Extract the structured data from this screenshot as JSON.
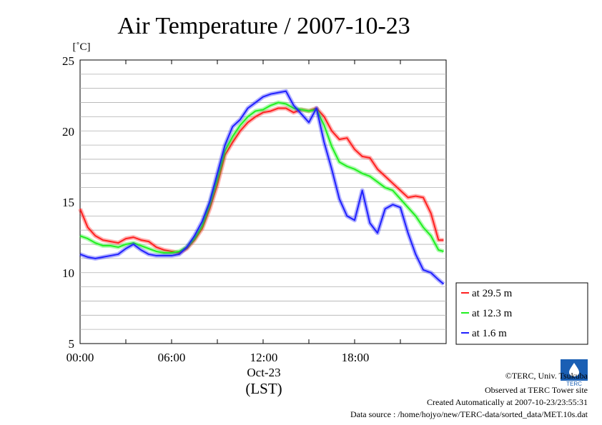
{
  "chart_data": {
    "type": "line",
    "title": "Air Temperature / 2007-10-23",
    "ylabel": "[˚C]",
    "xlabel": "(LST)",
    "x_date_label": "Oct-23",
    "ylim": [
      5,
      25
    ],
    "xlim": [
      "00:00",
      "23:50"
    ],
    "yticks": [
      "5",
      "10",
      "15",
      "20",
      "25"
    ],
    "xticks": [
      "00:00",
      "06:00",
      "12:00",
      "18:00"
    ],
    "grid": "horizontal",
    "legend_position": "right",
    "series": [
      {
        "name": "at 29.5 m",
        "color": "#ff2020",
        "x": [
          "00:00",
          "00:30",
          "01:00",
          "01:30",
          "02:00",
          "02:30",
          "03:00",
          "03:30",
          "04:00",
          "04:30",
          "05:00",
          "05:30",
          "06:00",
          "06:30",
          "07:00",
          "07:30",
          "08:00",
          "08:30",
          "09:00",
          "09:30",
          "10:00",
          "10:30",
          "11:00",
          "11:30",
          "12:00",
          "12:30",
          "13:00",
          "13:30",
          "14:00",
          "14:30",
          "15:00",
          "15:30",
          "16:00",
          "16:30",
          "17:00",
          "17:30",
          "18:00",
          "18:30",
          "19:00",
          "19:30",
          "20:00",
          "20:30",
          "21:00",
          "21:30",
          "22:00",
          "22:30",
          "23:00",
          "23:30",
          "23:50"
        ],
        "values": [
          14.5,
          13.2,
          12.6,
          12.3,
          12.2,
          12.1,
          12.4,
          12.5,
          12.3,
          12.2,
          11.8,
          11.6,
          11.5,
          11.4,
          11.7,
          12.3,
          13.1,
          14.5,
          16.2,
          18.3,
          19.2,
          20.0,
          20.6,
          21.0,
          21.3,
          21.4,
          21.6,
          21.6,
          21.3,
          21.5,
          21.4,
          21.6,
          21.0,
          20.0,
          19.4,
          19.5,
          18.7,
          18.2,
          18.1,
          17.3,
          16.8,
          16.3,
          15.8,
          15.3,
          15.4,
          15.3,
          14.2,
          12.3,
          12.3
        ]
      },
      {
        "name": "at 12.3 m",
        "color": "#20f020",
        "x": [
          "00:00",
          "00:30",
          "01:00",
          "01:30",
          "02:00",
          "02:30",
          "03:00",
          "03:30",
          "04:00",
          "04:30",
          "05:00",
          "05:30",
          "06:00",
          "06:30",
          "07:00",
          "07:30",
          "08:00",
          "08:30",
          "09:00",
          "09:30",
          "10:00",
          "10:30",
          "11:00",
          "11:30",
          "12:00",
          "12:30",
          "13:00",
          "13:30",
          "14:00",
          "14:30",
          "15:00",
          "15:30",
          "16:00",
          "16:30",
          "17:00",
          "17:30",
          "18:00",
          "18:30",
          "19:00",
          "19:30",
          "20:00",
          "20:30",
          "21:00",
          "21:30",
          "22:00",
          "22:30",
          "23:00",
          "23:30",
          "23:50"
        ],
        "values": [
          12.6,
          12.4,
          12.1,
          11.9,
          11.9,
          11.8,
          12.0,
          12.1,
          11.9,
          11.7,
          11.5,
          11.4,
          11.4,
          11.5,
          11.8,
          12.4,
          13.3,
          14.8,
          16.6,
          18.6,
          19.6,
          20.4,
          21.0,
          21.4,
          21.5,
          21.8,
          22.0,
          21.9,
          21.6,
          21.5,
          21.4,
          21.5,
          20.4,
          18.9,
          17.8,
          17.5,
          17.3,
          17.0,
          16.8,
          16.4,
          16.0,
          15.8,
          15.2,
          14.6,
          14.0,
          13.2,
          12.6,
          11.6,
          11.5
        ]
      },
      {
        "name": "at 1.6 m",
        "color": "#2020ff",
        "x": [
          "00:00",
          "00:30",
          "01:00",
          "01:30",
          "02:00",
          "02:30",
          "03:00",
          "03:30",
          "04:00",
          "04:30",
          "05:00",
          "05:30",
          "06:00",
          "06:30",
          "07:00",
          "07:30",
          "08:00",
          "08:30",
          "09:00",
          "09:30",
          "10:00",
          "10:30",
          "11:00",
          "11:30",
          "12:00",
          "12:30",
          "13:00",
          "13:30",
          "14:00",
          "14:30",
          "15:00",
          "15:30",
          "16:00",
          "16:30",
          "17:00",
          "17:30",
          "18:00",
          "18:30",
          "19:00",
          "19:30",
          "20:00",
          "20:30",
          "21:00",
          "21:30",
          "22:00",
          "22:30",
          "23:00",
          "23:30",
          "23:50"
        ],
        "values": [
          11.3,
          11.1,
          11.0,
          11.1,
          11.2,
          11.3,
          11.7,
          12.0,
          11.6,
          11.3,
          11.2,
          11.2,
          11.2,
          11.3,
          11.8,
          12.6,
          13.6,
          15.0,
          17.0,
          19.0,
          20.3,
          20.8,
          21.6,
          22.0,
          22.4,
          22.6,
          22.7,
          22.8,
          21.8,
          21.2,
          20.6,
          21.6,
          19.2,
          17.3,
          15.2,
          14.0,
          13.7,
          15.8,
          13.5,
          12.8,
          14.5,
          14.8,
          14.6,
          12.8,
          11.3,
          10.2,
          10.0,
          9.5,
          9.2
        ]
      }
    ]
  },
  "legend": {
    "entries": [
      "at 29.5 m",
      "at 12.3 m",
      "at 1.6 m"
    ]
  },
  "footer": {
    "copyright": "©TERC, Univ. Tsukuba",
    "site": "Observed at TERC Tower site",
    "created": "Created Automatically at 2007-10-23/23:55:31",
    "source": "Data source : /home/hojyo/new/TERC-data/sorted_data/MET.10s.dat",
    "logo_text": "TERC"
  }
}
